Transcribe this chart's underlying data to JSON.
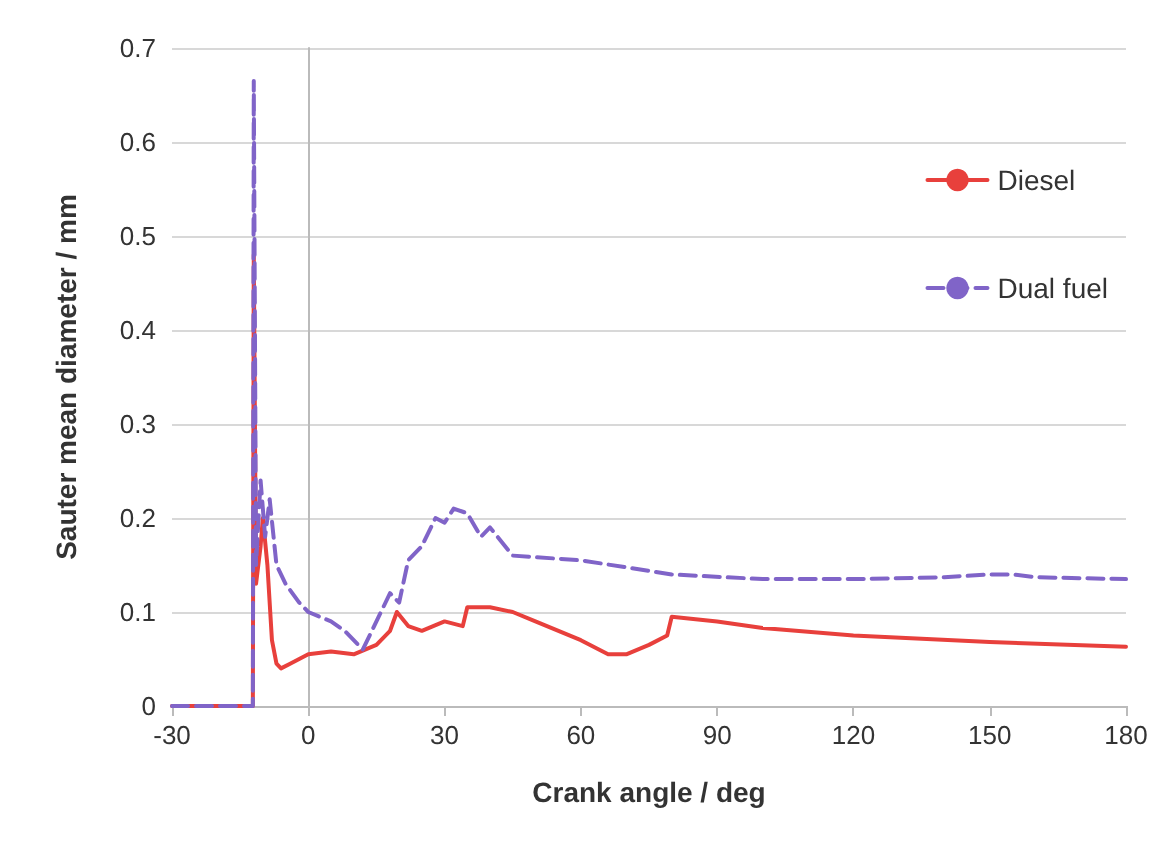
{
  "chart_data": {
    "type": "line",
    "xlabel": "Crank angle / deg",
    "ylabel": "Sauter mean diameter / mm",
    "xlim": [
      -30,
      180
    ],
    "xticks": [
      -30,
      0,
      30,
      60,
      90,
      120,
      150,
      180
    ],
    "ylim": [
      0,
      0.7
    ],
    "yticks": [
      0,
      0.1,
      0.2,
      0.3,
      0.4,
      0.5,
      0.6,
      0.7
    ],
    "grid": "y",
    "legend": "top right",
    "marker": "none",
    "series": [
      {
        "name": "Diesel",
        "color": "#e8403c",
        "line_style": "solid",
        "x": [
          -30,
          -12.2,
          -12,
          -11.5,
          -10.5,
          -10,
          -9,
          -8,
          -7,
          -6,
          -4,
          -2,
          0,
          5,
          10,
          15,
          18,
          19.5,
          22,
          25,
          30,
          34,
          35,
          40,
          45,
          50,
          60,
          66,
          70,
          75,
          79,
          80,
          90,
          100,
          120,
          150,
          180
        ],
        "values": [
          0,
          0,
          0.48,
          0.13,
          0.17,
          0.2,
          0.15,
          0.07,
          0.045,
          0.04,
          0.045,
          0.05,
          0.055,
          0.058,
          0.055,
          0.065,
          0.08,
          0.1,
          0.085,
          0.08,
          0.09,
          0.085,
          0.105,
          0.105,
          0.1,
          0.09,
          0.07,
          0.055,
          0.055,
          0.065,
          0.075,
          0.095,
          0.09,
          0.083,
          0.075,
          0.068,
          0.063
        ]
      },
      {
        "name": "Dual fuel",
        "color": "#8064c8",
        "line_style": "dashed",
        "x": [
          -30,
          -12.2,
          -12,
          -11.5,
          -10.5,
          -9.5,
          -8.5,
          -7,
          -5,
          -2,
          0,
          5,
          8,
          10,
          12,
          15,
          18,
          20,
          22,
          25,
          28,
          30,
          32,
          35,
          38,
          40,
          45,
          60,
          80,
          100,
          120,
          140,
          150,
          155,
          160,
          180
        ],
        "values": [
          0,
          0,
          0.665,
          0.15,
          0.24,
          0.18,
          0.22,
          0.15,
          0.13,
          0.11,
          0.1,
          0.09,
          0.08,
          0.07,
          0.06,
          0.09,
          0.12,
          0.11,
          0.155,
          0.17,
          0.2,
          0.195,
          0.21,
          0.205,
          0.18,
          0.19,
          0.16,
          0.155,
          0.14,
          0.135,
          0.135,
          0.137,
          0.14,
          0.14,
          0.137,
          0.135
        ]
      }
    ]
  }
}
